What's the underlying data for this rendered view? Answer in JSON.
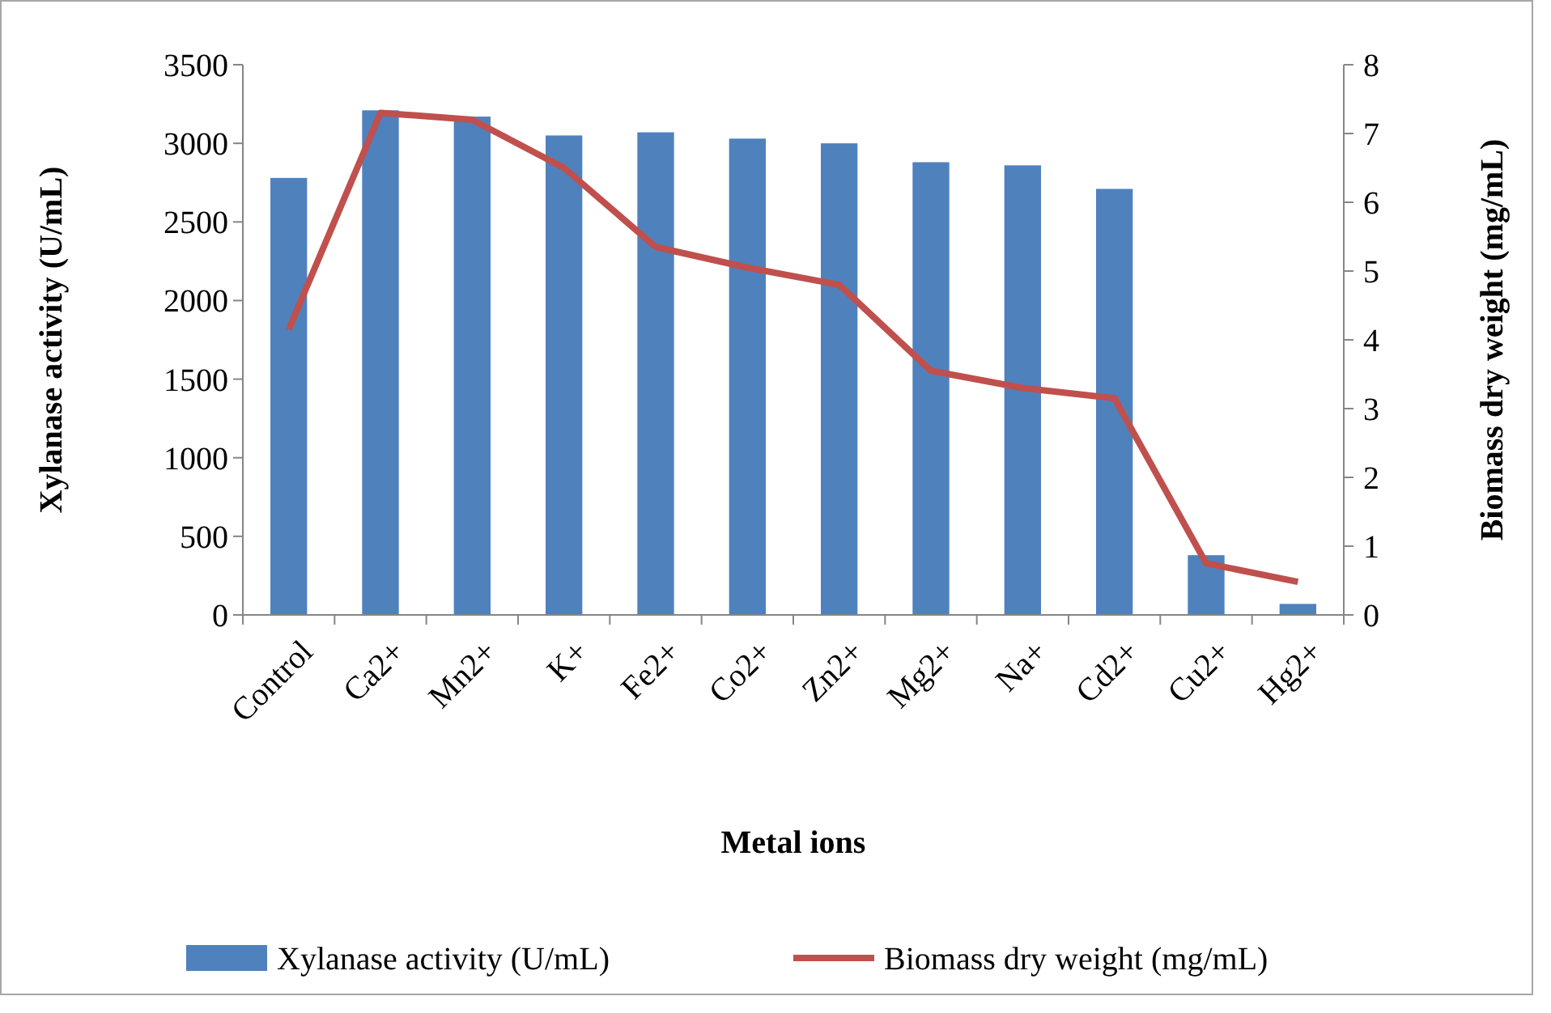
{
  "chart_data": {
    "type": "bar",
    "xlabel": "Metal ions",
    "ylabel": "Xylanase activity (U/mL)",
    "y2label": "Biomass dry weight (mg/mL)",
    "categories": [
      "Control",
      "Ca2+",
      "Mn2+",
      "K+",
      "Fe2+",
      "Co2+",
      "Zn2+",
      "Mg2+",
      "Na+",
      "Cd2+",
      "Cu2+",
      "Hg2+"
    ],
    "series": [
      {
        "name": "Xylanase activity (U/mL)",
        "color": "#4f81bd",
        "values": [
          2780,
          3210,
          3170,
          3050,
          3070,
          3030,
          3000,
          2880,
          2860,
          2710,
          380,
          70
        ]
      },
      {
        "name": "Biomass dry weight (mg/mL)",
        "type": "line",
        "axis": "y2",
        "color": "#c0504d",
        "values": [
          4.15,
          7.3,
          7.2,
          6.5,
          5.35,
          5.05,
          4.8,
          3.55,
          3.3,
          3.15,
          0.75,
          0.48
        ]
      }
    ],
    "ylim": [
      0,
      3500
    ],
    "yticks": [
      0,
      500,
      1000,
      1500,
      2000,
      2500,
      3000,
      3500
    ],
    "y2lim": [
      0,
      8
    ],
    "y2ticks": [
      0,
      1,
      2,
      3,
      4,
      5,
      6,
      7,
      8
    ],
    "grid": false,
    "legend": "bottom",
    "marker": "none",
    "line_style": "solid"
  }
}
